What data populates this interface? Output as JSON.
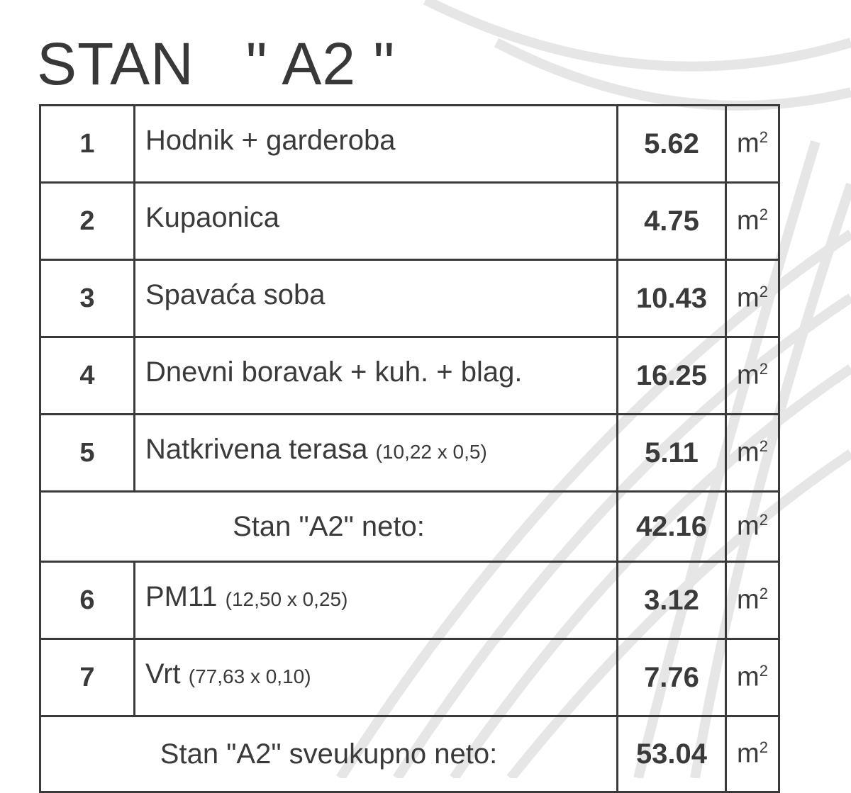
{
  "title": "STAN   \" A2 \"",
  "unit": "m",
  "unit_exp": "2",
  "rows": [
    {
      "no": "1",
      "name": "Hodnik + garderoba",
      "dim": "",
      "area": "5.62"
    },
    {
      "no": "2",
      "name": "Kupaonica",
      "dim": "",
      "area": "4.75"
    },
    {
      "no": "3",
      "name": "Spavaća soba",
      "dim": "",
      "area": "10.43"
    },
    {
      "no": "4",
      "name": "Dnevni boravak + kuh. + blag.",
      "dim": "",
      "area": "16.25"
    },
    {
      "no": "5",
      "name": "Natkrivena terasa",
      "dim": "(10,22 x 0,5)",
      "area": "5.11"
    }
  ],
  "subtotal": {
    "label": "Stan \"A2\" neto:",
    "area": "42.16"
  },
  "rows2": [
    {
      "no": "6",
      "name": "PM11",
      "dim": "(12,50 x 0,25)",
      "area": "3.12"
    },
    {
      "no": "7",
      "name": "Vrt",
      "dim": "(77,63 x 0,10)",
      "area": "7.76"
    }
  ],
  "total": {
    "label": "Stan \"A2\" sveukupno neto:",
    "area": "53.04"
  }
}
